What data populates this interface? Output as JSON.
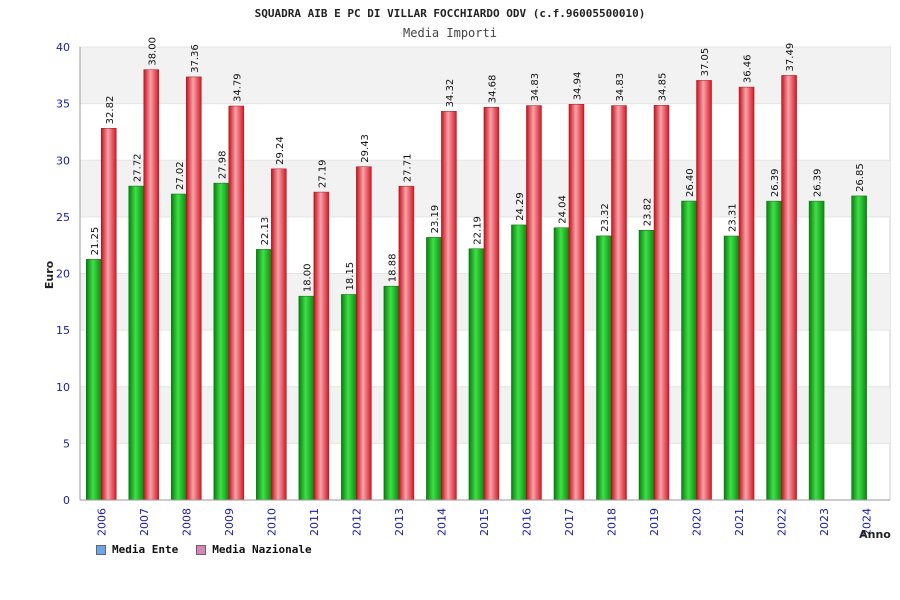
{
  "colors": {
    "ente": "#19b31f",
    "nazionale": "#e8323c",
    "legend_ente": "#6aa5e6",
    "legend_nazionale": "#d884b4",
    "band": "#f2f2f2",
    "axis_text": "#1a1aa6"
  },
  "chart_data": {
    "type": "bar",
    "title": "SQUADRA AIB E PC DI VILLAR FOCCHIARDO ODV (c.f.96005500010)",
    "subtitle": "Media Importi",
    "xlabel": "Anno",
    "ylabel": "Euro",
    "ylim": [
      0,
      40
    ],
    "yticks": [
      "0",
      "5",
      "10",
      "15",
      "20",
      "25",
      "30",
      "35",
      "40"
    ],
    "grid": true,
    "legend_position": "bottom-left",
    "categories": [
      "2006",
      "2007",
      "2008",
      "2009",
      "2010",
      "2011",
      "2012",
      "2013",
      "2014",
      "2015",
      "2016",
      "2017",
      "2018",
      "2019",
      "2020",
      "2021",
      "2022",
      "2023",
      "2024"
    ],
    "series": [
      {
        "name": "Media Ente",
        "values": [
          21.25,
          27.72,
          27.02,
          27.98,
          22.13,
          18.0,
          18.15,
          18.88,
          23.19,
          22.19,
          24.29,
          24.04,
          23.32,
          23.82,
          26.4,
          23.31,
          26.39,
          26.39,
          26.85
        ],
        "labels": [
          "21.25",
          "27.72",
          "27.02",
          "27.98",
          "22.13",
          "18.00",
          "18.15",
          "18.88",
          "23.19",
          "22.19",
          "24.29",
          "24.04",
          "23.32",
          "23.82",
          "26.40",
          "23.31",
          "26.39",
          "26.39",
          "26.85"
        ]
      },
      {
        "name": "Media Nazionale",
        "values": [
          32.82,
          38.0,
          37.36,
          34.79,
          29.24,
          27.19,
          29.43,
          27.71,
          34.32,
          34.68,
          34.83,
          34.94,
          34.83,
          34.85,
          37.05,
          36.46,
          37.49,
          null,
          null
        ],
        "labels": [
          "32.82",
          "38.00",
          "37.36",
          "34.79",
          "29.24",
          "27.19",
          "29.43",
          "27.71",
          "34.32",
          "34.68",
          "34.83",
          "34.94",
          "34.83",
          "34.85",
          "37.05",
          "36.46",
          "37.49",
          "",
          ""
        ]
      }
    ]
  }
}
